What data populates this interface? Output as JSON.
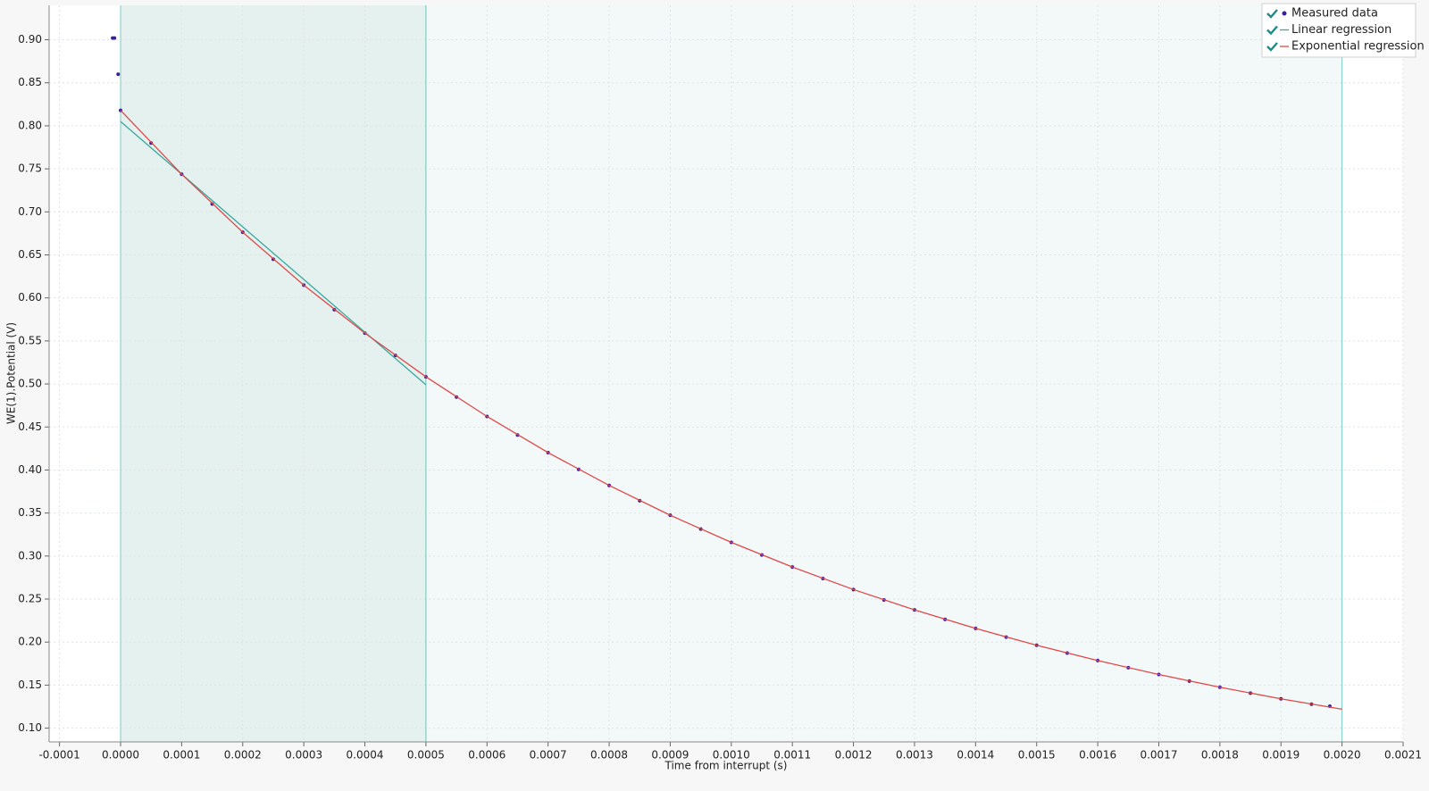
{
  "chart_data": {
    "type": "scatter",
    "xlabel": "Time from interrupt (s)",
    "ylabel": "WE(1).Potential (V)",
    "xlim": [
      -0.000117,
      0.0021
    ],
    "ylim": [
      0.084,
      0.94
    ],
    "xticks": [
      {
        "value": -0.0001,
        "label": "-0.0001"
      },
      {
        "value": 0,
        "label": "0.0000"
      },
      {
        "value": 0.0001,
        "label": "0.0001"
      },
      {
        "value": 0.0002,
        "label": "0.0002"
      },
      {
        "value": 0.0003,
        "label": "0.0003"
      },
      {
        "value": 0.0004,
        "label": "0.0004"
      },
      {
        "value": 0.0005,
        "label": "0.0005"
      },
      {
        "value": 0.0006,
        "label": "0.0006"
      },
      {
        "value": 0.0007,
        "label": "0.0007"
      },
      {
        "value": 0.0008,
        "label": "0.0008"
      },
      {
        "value": 0.0009,
        "label": "0.0009"
      },
      {
        "value": 0.001,
        "label": "0.0010"
      },
      {
        "value": 0.0011,
        "label": "0.0011"
      },
      {
        "value": 0.0012,
        "label": "0.0012"
      },
      {
        "value": 0.0013,
        "label": "0.0013"
      },
      {
        "value": 0.0014,
        "label": "0.0014"
      },
      {
        "value": 0.0015,
        "label": "0.0015"
      },
      {
        "value": 0.0016,
        "label": "0.0016"
      },
      {
        "value": 0.0017,
        "label": "0.0017"
      },
      {
        "value": 0.0018,
        "label": "0.0018"
      },
      {
        "value": 0.0019,
        "label": "0.0019"
      },
      {
        "value": 0.002,
        "label": "0.0020"
      },
      {
        "value": 0.0021,
        "label": "0.0021"
      }
    ],
    "yticks": [
      {
        "value": 0.1,
        "label": "0.10"
      },
      {
        "value": 0.15,
        "label": "0.15"
      },
      {
        "value": 0.2,
        "label": "0.20"
      },
      {
        "value": 0.25,
        "label": "0.25"
      },
      {
        "value": 0.3,
        "label": "0.30"
      },
      {
        "value": 0.35,
        "label": "0.35"
      },
      {
        "value": 0.4,
        "label": "0.40"
      },
      {
        "value": 0.45,
        "label": "0.45"
      },
      {
        "value": 0.5,
        "label": "0.50"
      },
      {
        "value": 0.55,
        "label": "0.55"
      },
      {
        "value": 0.6,
        "label": "0.60"
      },
      {
        "value": 0.65,
        "label": "0.65"
      },
      {
        "value": 0.7,
        "label": "0.70"
      },
      {
        "value": 0.75,
        "label": "0.75"
      },
      {
        "value": 0.8,
        "label": "0.80"
      },
      {
        "value": 0.85,
        "label": "0.85"
      },
      {
        "value": 0.9,
        "label": "0.90"
      }
    ],
    "grid": true,
    "legend": "top-right",
    "shaded_ranges": [
      {
        "xlim": [
          0,
          0.0005
        ],
        "color": "#e4f1ef"
      },
      {
        "xlim": [
          0.0005,
          0.002
        ],
        "color": "#f3f8f9"
      }
    ],
    "series": [
      {
        "name": "Measured data",
        "color": "#3a1e9c",
        "mode": "markers",
        "x": [
          -1.3e-05,
          -1e-05,
          -4e-06,
          0,
          5e-05,
          0.0001,
          0.00015,
          0.0002,
          0.00025,
          0.0003,
          0.00035,
          0.0004,
          0.00045,
          0.0005,
          0.00055,
          0.0006,
          0.00065,
          0.0007,
          0.00075,
          0.0008,
          0.00085,
          0.0009,
          0.00095,
          0.001,
          0.00105,
          0.0011,
          0.00115,
          0.0012,
          0.00125,
          0.0013,
          0.00135,
          0.0014,
          0.00145,
          0.0015,
          0.00155,
          0.0016,
          0.00165,
          0.0017,
          0.00175,
          0.0018,
          0.00185,
          0.0019,
          0.00195,
          0.00198
        ],
        "values": [
          0.902,
          0.902,
          0.86,
          0.818,
          0.78,
          0.7438,
          0.7092,
          0.6763,
          0.6449,
          0.6149,
          0.5863,
          0.5591,
          0.5331,
          0.5083,
          0.4847,
          0.4622,
          0.4407,
          0.4202,
          0.4007,
          0.3821,
          0.3643,
          0.3474,
          0.3313,
          0.3159,
          0.3012,
          0.2872,
          0.2739,
          0.2611,
          0.249,
          0.2374,
          0.2264,
          0.2159,
          0.2058,
          0.1963,
          0.1872,
          0.1785,
          0.1702,
          0.1623,
          0.1547,
          0.1475,
          0.1407,
          0.1341,
          0.1279,
          0.1255
        ]
      },
      {
        "name": "Linear regression",
        "color": "#3aa8a0",
        "mode": "line",
        "x": [
          0,
          0.0005
        ],
        "values": [
          0.805,
          0.499
        ]
      },
      {
        "name": "Exponential regression",
        "color": "#e04848",
        "mode": "line",
        "x": [
          0,
          0.0001,
          0.0002,
          0.0003,
          0.0004,
          0.0005,
          0.0006,
          0.0007,
          0.0008,
          0.0009,
          0.001,
          0.0011,
          0.0012,
          0.0013,
          0.0014,
          0.0015,
          0.0016,
          0.0017,
          0.0018,
          0.0019,
          0.002
        ],
        "values": [
          0.818,
          0.7438,
          0.6763,
          0.6149,
          0.5591,
          0.5083,
          0.4622,
          0.4202,
          0.3821,
          0.3474,
          0.3159,
          0.2872,
          0.2611,
          0.2374,
          0.2159,
          0.1963,
          0.1785,
          0.1623,
          0.1475,
          0.1341,
          0.122
        ]
      }
    ]
  }
}
